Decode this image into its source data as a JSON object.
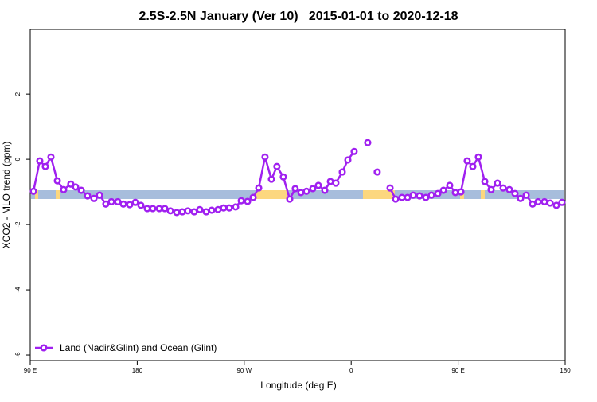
{
  "chart_data": {
    "type": "line",
    "title": "2.5S-2.5N January (Ver 10)   2015-01-01 to 2020-12-18",
    "xlabel": "Longitude (deg E)",
    "ylabel": "XCO2 - MLO trend (ppm)",
    "x": [
      92.7,
      98.0,
      102.7,
      107.4,
      112.8,
      118.1,
      124.1,
      128.2,
      132.9,
      138.2,
      143.6,
      148.3,
      153.6,
      158.3,
      163.7,
      168.3,
      173.7,
      178.4,
      183.1,
      188.4,
      193.1,
      198.5,
      203.2,
      207.9,
      213.2,
      217.9,
      222.6,
      227.9,
      232.6,
      238.0,
      242.7,
      248.0,
      252.7,
      257.4,
      262.8,
      267.5,
      272.8,
      277.5,
      282.2,
      287.5,
      292.9,
      297.5,
      302.9,
      308.3,
      312.9,
      317.7,
      322.4,
      327.7,
      332.4,
      337.8,
      342.5,
      347.1,
      352.5,
      357.2,
      362.5,
      367.9,
      373.9,
      377.9,
      381.9,
      387.3,
      392.7,
      397.4,
      402.7,
      407.4,
      412.1,
      417.5,
      422.8,
      427.5,
      432.9,
      437.6,
      442.9,
      447.6,
      452.3,
      457.6,
      462.3,
      467.0,
      472.4,
      477.7,
      483.1,
      487.8,
      493.1,
      497.8,
      502.5,
      507.2,
      512.6,
      517.2,
      522.6,
      527.3,
      532.6,
      537.3
    ],
    "series": [
      {
        "name": "Land (Nadir&Glint) and Ocean (Glint)",
        "color": "#a020f0",
        "values": [
          -0.98,
          -0.05,
          -0.22,
          0.07,
          -0.66,
          -0.93,
          -0.76,
          -0.85,
          -0.95,
          -1.12,
          -1.2,
          -1.1,
          -1.37,
          -1.3,
          -1.3,
          -1.37,
          -1.39,
          -1.32,
          -1.41,
          -1.51,
          -1.51,
          -1.51,
          -1.51,
          -1.58,
          -1.63,
          -1.61,
          -1.58,
          -1.61,
          -1.54,
          -1.61,
          -1.56,
          -1.54,
          -1.49,
          -1.49,
          -1.46,
          -1.27,
          -1.29,
          -1.17,
          -0.88,
          0.07,
          -0.61,
          -0.22,
          -0.54,
          -1.22,
          -0.9,
          -1.02,
          -0.98,
          -0.9,
          -0.8,
          -0.95,
          -0.68,
          -0.73,
          -0.39,
          -0.02,
          0.24,
          null,
          0.51,
          null,
          -0.39,
          null,
          -0.88,
          -1.22,
          -1.17,
          -1.17,
          -1.1,
          -1.12,
          -1.17,
          -1.1,
          -1.05,
          -0.95,
          -0.8,
          -1.02,
          -1.0,
          -0.05,
          -0.22,
          0.07,
          -0.68,
          -0.93,
          -0.73,
          -0.88,
          -0.93,
          -1.05,
          -1.2,
          -1.1,
          -1.37,
          -1.3,
          -1.3,
          -1.34,
          -1.41,
          -1.32
        ]
      }
    ],
    "xlim": [
      90,
      540
    ],
    "xticks": [
      {
        "value": 90,
        "label": "90 E"
      },
      {
        "value": 180,
        "label": "180"
      },
      {
        "value": 270,
        "label": "90 W"
      },
      {
        "value": 360,
        "label": "0"
      },
      {
        "value": 450,
        "label": "90 E"
      },
      {
        "value": 540,
        "label": "180"
      }
    ],
    "ylim": [
      -6.17,
      3.98
    ],
    "yticks": [
      2,
      0,
      -2,
      -4,
      -6
    ],
    "legend": "bottomleft"
  }
}
